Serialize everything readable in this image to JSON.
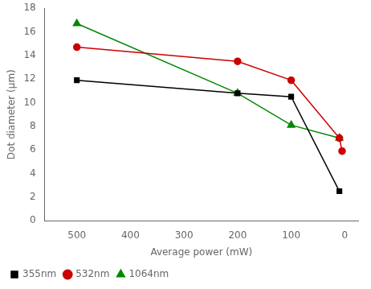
{
  "chart_data": {
    "type": "line",
    "xlabel": "Average power (mW)",
    "ylabel": "Dot diameter (μm)",
    "xlim": [
      560,
      -25
    ],
    "ylim": [
      0,
      18
    ],
    "xticks": [
      500,
      400,
      300,
      200,
      100,
      0
    ],
    "yticks": [
      0,
      2,
      4,
      6,
      8,
      10,
      12,
      14,
      16,
      18
    ],
    "grid": false,
    "legend": "lower left",
    "series": [
      {
        "name": "355nm",
        "color": "#000000",
        "marker": "square",
        "line_style": "solid",
        "x": [
          500,
          200,
          100,
          10
        ],
        "values": [
          11.9,
          10.8,
          10.5,
          2.5
        ]
      },
      {
        "name": "532nm",
        "color": "#cc0000",
        "marker": "circle",
        "line_style": "solid",
        "x": [
          500,
          200,
          100,
          10,
          5
        ],
        "values": [
          14.7,
          13.5,
          11.9,
          7.0,
          5.9
        ]
      },
      {
        "name": "1064nm",
        "color": "#008800",
        "marker": "triangle",
        "line_style": "solid",
        "x": [
          500,
          200,
          100,
          10
        ],
        "values": [
          16.7,
          10.8,
          8.1,
          7.0
        ]
      }
    ]
  }
}
